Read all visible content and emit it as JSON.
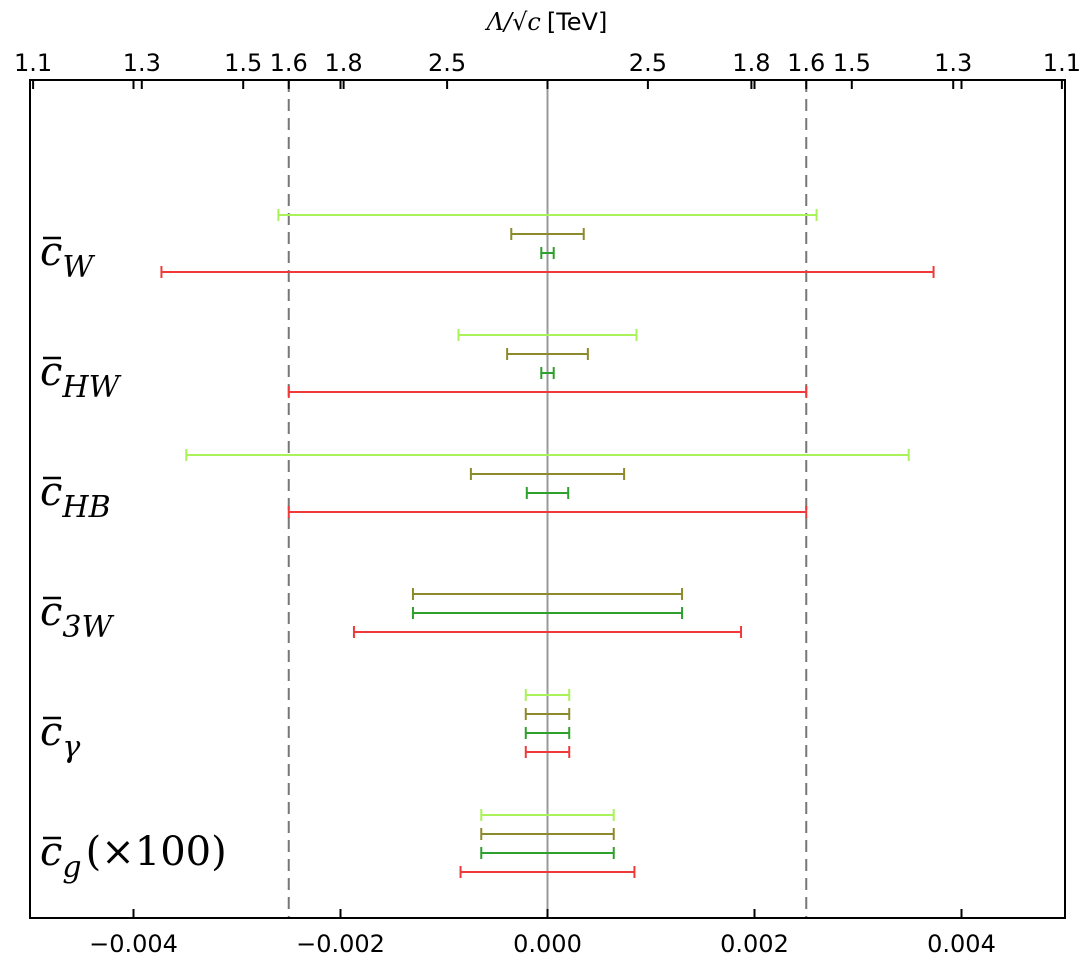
{
  "chart_data": {
    "type": "errorbar",
    "x_axis": {
      "range": [
        -0.005,
        0.005
      ],
      "ticks": [
        -0.004,
        -0.002,
        0.0,
        0.002,
        0.004
      ],
      "tick_labels": [
        "−0.004",
        "−0.002",
        "0.000",
        "0.002",
        "0.004"
      ]
    },
    "top_axis": {
      "title": "Λ/√c [TeV]",
      "title_symbol": "Λ/√c",
      "title_unit": "[TeV]",
      "ticks": [
        {
          "x": -0.00497,
          "label": "1.1"
        },
        {
          "x": -0.00392,
          "label": "1.3"
        },
        {
          "x": -0.00294,
          "label": "1.5"
        },
        {
          "x": -0.0025,
          "label": "1.6"
        },
        {
          "x": -0.00197,
          "label": "1.8"
        },
        {
          "x": -0.00097,
          "label": "2.5"
        },
        {
          "x": 0.00097,
          "label": "2.5"
        },
        {
          "x": 0.00197,
          "label": "1.8"
        },
        {
          "x": 0.0025,
          "label": "1.6"
        },
        {
          "x": 0.00294,
          "label": "1.5"
        },
        {
          "x": 0.00392,
          "label": "1.3"
        },
        {
          "x": 0.00497,
          "label": "1.1"
        }
      ]
    },
    "reference_lines": {
      "dashed": [
        -0.0025,
        0.0025
      ],
      "solid": [
        0.0
      ]
    },
    "colors": {
      "lightgreen": "#a9f25a",
      "olive": "#8b8b2e",
      "green": "#2ea02e",
      "red": "#f03a3a"
    },
    "rows": [
      {
        "label": "c̄W",
        "base": "c",
        "sub": "W",
        "extra": "",
        "bars": [
          {
            "color": "lightgreen",
            "min": -0.0026,
            "max": 0.0026
          },
          {
            "color": "olive",
            "min": -0.00035,
            "max": 0.00035
          },
          {
            "color": "green",
            "min": -6e-05,
            "max": 6e-05
          },
          {
            "color": "red",
            "min": -0.00373,
            "max": 0.00373
          }
        ]
      },
      {
        "label": "c̄HW",
        "base": "c",
        "sub": "HW",
        "extra": "",
        "bars": [
          {
            "color": "lightgreen",
            "min": -0.00086,
            "max": 0.00086
          },
          {
            "color": "olive",
            "min": -0.00039,
            "max": 0.00039
          },
          {
            "color": "green",
            "min": -6e-05,
            "max": 6e-05
          },
          {
            "color": "red",
            "min": -0.0025,
            "max": 0.0025
          }
        ]
      },
      {
        "label": "c̄HB",
        "base": "c",
        "sub": "HB",
        "extra": "",
        "bars": [
          {
            "color": "lightgreen",
            "min": -0.00349,
            "max": 0.00349
          },
          {
            "color": "olive",
            "min": -0.00074,
            "max": 0.00074
          },
          {
            "color": "green",
            "min": -0.0002,
            "max": 0.0002
          },
          {
            "color": "red",
            "min": -0.0025,
            "max": 0.0025
          }
        ]
      },
      {
        "label": "c̄3W",
        "base": "c",
        "sub": "3W",
        "extra": "",
        "bars": [
          {
            "color": "olive",
            "min": -0.0013,
            "max": 0.0013
          },
          {
            "color": "green",
            "min": -0.0013,
            "max": 0.0013
          },
          {
            "color": "red",
            "min": -0.00187,
            "max": 0.00187
          }
        ]
      },
      {
        "label": "c̄γ",
        "base": "c",
        "sub": "γ",
        "extra": "",
        "bars": [
          {
            "color": "lightgreen",
            "min": -0.00021,
            "max": 0.00021
          },
          {
            "color": "olive",
            "min": -0.00021,
            "max": 0.00021
          },
          {
            "color": "green",
            "min": -0.00021,
            "max": 0.00021
          },
          {
            "color": "red",
            "min": -0.00021,
            "max": 0.00021
          }
        ]
      },
      {
        "label": "c̄g(×100)",
        "base": "c",
        "sub": "g",
        "extra": "(×100)",
        "bars": [
          {
            "color": "lightgreen",
            "min": -0.00064,
            "max": 0.00064
          },
          {
            "color": "olive",
            "min": -0.00064,
            "max": 0.00064
          },
          {
            "color": "green",
            "min": -0.00064,
            "max": 0.00064
          },
          {
            "color": "red",
            "min": -0.00084,
            "max": 0.00084
          }
        ]
      }
    ]
  }
}
